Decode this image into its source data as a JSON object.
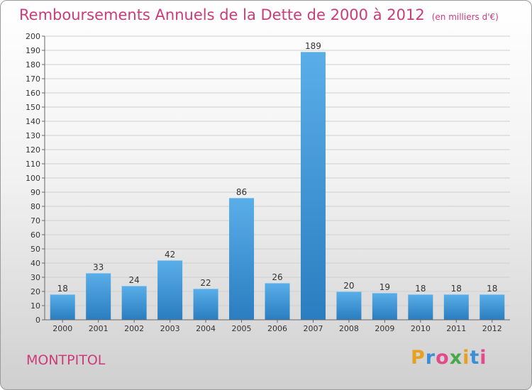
{
  "header": {
    "title": "Remboursements Annuels de la Dette de 2000 à 2012",
    "unit": "(en milliers d'€)"
  },
  "footer": {
    "commune": "MONTPITOL",
    "logo": "Proxiti"
  },
  "colors": {
    "title": "#cc3b7a",
    "bar_top": "#5aaee8",
    "bar_bottom": "#2a7dc0",
    "grid": "#cfcfcf",
    "logo_letters": [
      "#e8a020",
      "#3a8fd6",
      "#e24a8a",
      "#4aa84a",
      "#e8a020",
      "#3a8fd6",
      "#e24a8a"
    ]
  },
  "chart_data": {
    "type": "bar",
    "categories": [
      "2000",
      "2001",
      "2002",
      "2003",
      "2004",
      "2005",
      "2006",
      "2007",
      "2008",
      "2009",
      "2010",
      "2011",
      "2012"
    ],
    "values": [
      18,
      33,
      24,
      42,
      22,
      86,
      26,
      189,
      20,
      19,
      18,
      18,
      18
    ],
    "value_labels": [
      "18",
      "33",
      "24",
      "42",
      "22",
      "86",
      "26",
      "189",
      "20",
      "19",
      "18",
      "18",
      "18"
    ],
    "ylim": [
      0,
      200
    ],
    "yticks": [
      "0",
      "10",
      "20",
      "30",
      "40",
      "50",
      "60",
      "70",
      "80",
      "90",
      "100",
      "110",
      "120",
      "130",
      "140",
      "150",
      "160",
      "170",
      "180",
      "190",
      "200"
    ],
    "grid": true,
    "legend": "none"
  }
}
